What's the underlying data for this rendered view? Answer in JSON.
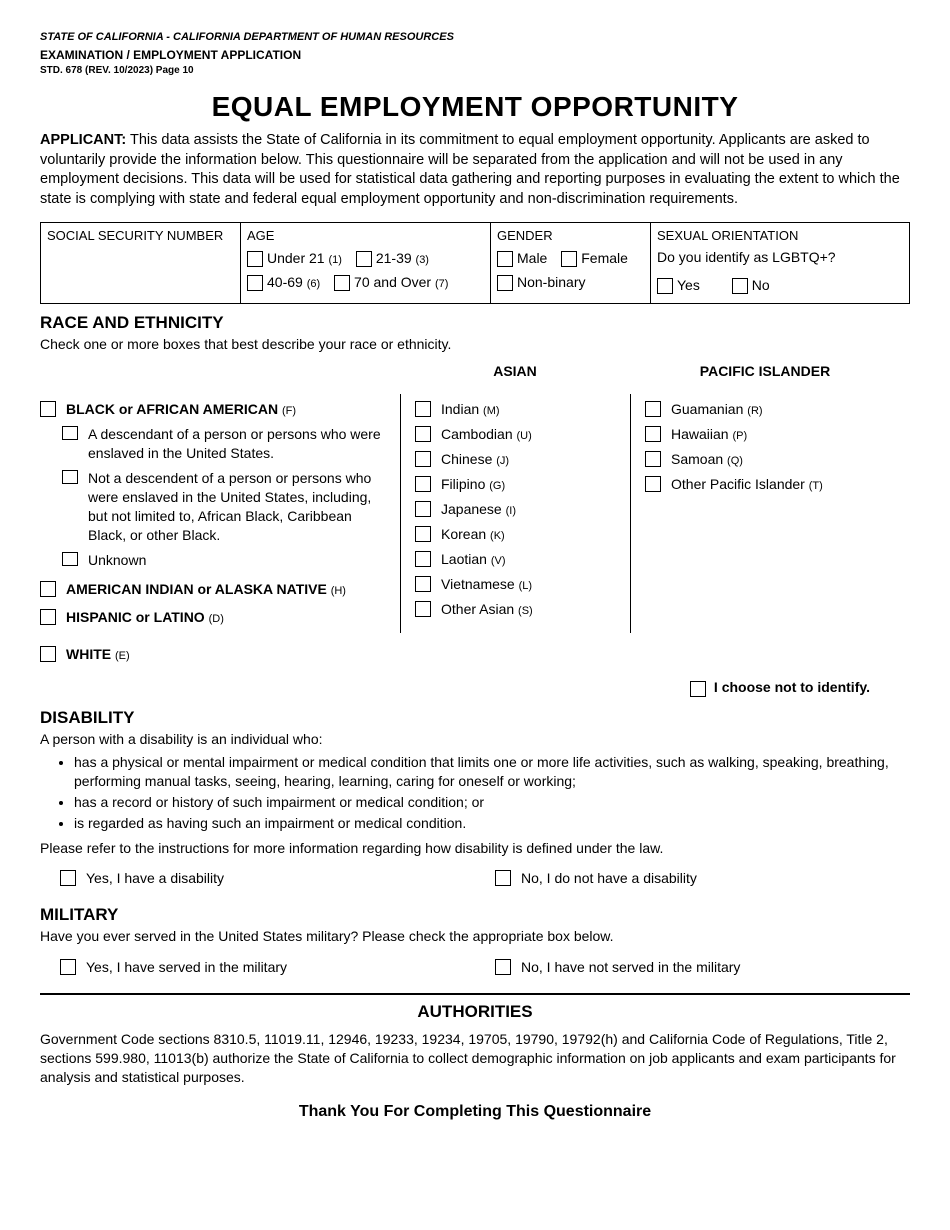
{
  "header": {
    "agency": "STATE OF CALIFORNIA - CALIFORNIA DEPARTMENT OF HUMAN RESOURCES",
    "form_title": "EXAMINATION / EMPLOYMENT APPLICATION",
    "revision": "STD. 678 (REV. 10/2023) Page 10"
  },
  "title": "EQUAL EMPLOYMENT OPPORTUNITY",
  "intro_label": "APPLICANT:",
  "intro_text": " This data assists the State of California in its commitment to equal employment opportunity. Applicants are asked to voluntarily provide the information below. This questionnaire will be separated from the application and will not be used in any employment decisions. This data will be used for statistical data gathering and reporting purposes in evaluating the extent to which the state is complying with state and federal equal employment opportunity and non-discrimination requirements.",
  "top": {
    "ssn_label": "SOCIAL SECURITY NUMBER",
    "age_label": "AGE",
    "age_opts": [
      {
        "label": "Under 21",
        "code": "(1)"
      },
      {
        "label": "21-39",
        "code": "(3)"
      },
      {
        "label": "40-69",
        "code": "(6)"
      },
      {
        "label": "70 and Over",
        "code": "(7)"
      }
    ],
    "gender_label": "GENDER",
    "gender_opts": [
      "Male",
      "Female",
      "Non-binary"
    ],
    "orient_label": "SEXUAL ORIENTATION",
    "orient_q": "Do you identify as LGBTQ+?",
    "orient_opts": [
      "Yes",
      "No"
    ]
  },
  "race": {
    "title": "RACE AND ETHNICITY",
    "subtitle": "Check one or more boxes that best describe your race or ethnicity.",
    "col1": {
      "black": {
        "label": "BLACK or AFRICAN AMERICAN",
        "code": "(F)"
      },
      "black_sub": [
        "A descendant of a person or persons who were enslaved in the United States.",
        "Not a descendent of a person or persons who were enslaved in the United States, including, but not limited to, African Black, Caribbean Black, or other Black.",
        "Unknown"
      ],
      "aian": {
        "label": "AMERICAN INDIAN or ALASKA NATIVE",
        "code": "(H)"
      },
      "hispanic": {
        "label": "HISPANIC or LATINO",
        "code": "(D)"
      },
      "white": {
        "label": "WHITE",
        "code": "(E)"
      }
    },
    "asian_head": "ASIAN",
    "asian": [
      {
        "label": "Indian",
        "code": "(M)"
      },
      {
        "label": "Cambodian",
        "code": "(U)"
      },
      {
        "label": "Chinese",
        "code": "(J)"
      },
      {
        "label": "Filipino",
        "code": "(G)"
      },
      {
        "label": "Japanese",
        "code": "(I)"
      },
      {
        "label": "Korean",
        "code": "(K)"
      },
      {
        "label": "Laotian",
        "code": "(V)"
      },
      {
        "label": "Vietnamese",
        "code": "(L)"
      },
      {
        "label": "Other Asian",
        "code": "(S)"
      }
    ],
    "pi_head": "PACIFIC ISLANDER",
    "pi": [
      {
        "label": "Guamanian",
        "code": "(R)"
      },
      {
        "label": "Hawaiian",
        "code": "(P)"
      },
      {
        "label": "Samoan",
        "code": "(Q)"
      },
      {
        "label": "Other Pacific Islander",
        "code": "(T)"
      }
    ],
    "not_identify": "I choose not to identify."
  },
  "disability": {
    "title": "DISABILITY",
    "lead": "A person with a disability is an individual who:",
    "bullets": [
      "has a physical or mental impairment or medical condition that limits one or  more life activities, such as walking, speaking, breathing, performing manual tasks, seeing, hearing, learning, caring for oneself or working;",
      "has a record or history of such impairment or medical condition; or",
      "is regarded as having such an impairment or medical condition."
    ],
    "note": "Please refer to the instructions for more information regarding how disability is defined under the law.",
    "yes": "Yes, I have a disability",
    "no": "No, I do not have a disability"
  },
  "military": {
    "title": "MILITARY",
    "q": "Have you ever served in the United States military? Please check the appropriate box below.",
    "yes": "Yes, I have served in the military",
    "no": "No, I have not served in the military"
  },
  "authorities": {
    "title": "AUTHORITIES",
    "text": "Government Code sections 8310.5, 11019.11, 12946, 19233, 19234, 19705, 19790, 19792(h) and California Code of Regulations, Title 2, sections 599.980, 11013(b) authorize the State of California to collect demographic information on job applicants and exam participants for analysis and statistical purposes."
  },
  "thanks": "Thank You For Completing This Questionnaire"
}
